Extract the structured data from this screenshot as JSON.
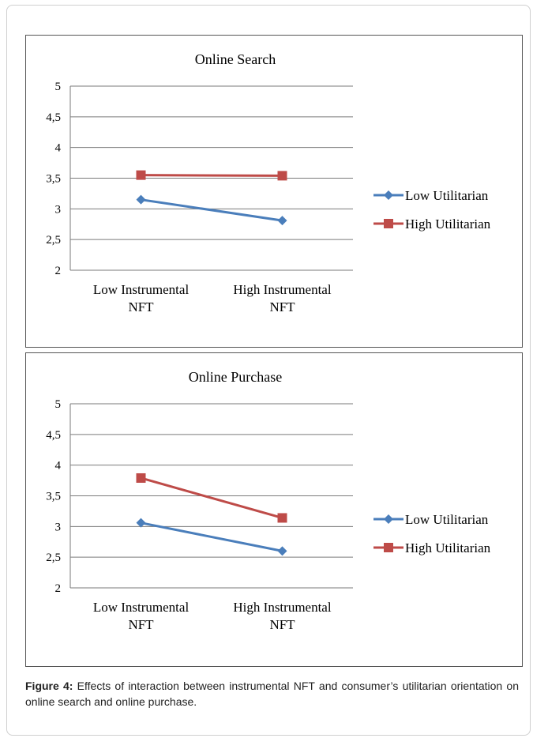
{
  "chart_data": [
    {
      "type": "line",
      "title": "Online Search",
      "categories": [
        "Low Instrumental NFT",
        "High Instrumental NFT"
      ],
      "category_lines": [
        [
          "Low Instrumental",
          "NFT"
        ],
        [
          "High Instrumental",
          "NFT"
        ]
      ],
      "yticks": [
        "2",
        "2,5",
        "3",
        "3,5",
        "4",
        "4,5",
        "5"
      ],
      "ylim": [
        2,
        5
      ],
      "grid": true,
      "legend_position": "right",
      "series": [
        {
          "name": "Low Utilitarian",
          "values": [
            3.15,
            2.81
          ],
          "color": "#4a7ebb",
          "marker": "diamond"
        },
        {
          "name": "High Utilitarian",
          "values": [
            3.55,
            3.54
          ],
          "color": "#be4b48",
          "marker": "square"
        }
      ]
    },
    {
      "type": "line",
      "title": "Online Purchase",
      "categories": [
        "Low Instrumental NFT",
        "High Instrumental NFT"
      ],
      "category_lines": [
        [
          "Low Instrumental",
          "NFT"
        ],
        [
          "High Instrumental",
          "NFT"
        ]
      ],
      "yticks": [
        "2",
        "2,5",
        "3",
        "3,5",
        "4",
        "4,5",
        "5"
      ],
      "ylim": [
        2,
        5
      ],
      "grid": true,
      "legend_position": "right",
      "series": [
        {
          "name": "Low Utilitarian",
          "values": [
            3.06,
            2.6
          ],
          "color": "#4a7ebb",
          "marker": "diamond"
        },
        {
          "name": "High Utilitarian",
          "values": [
            3.79,
            3.14
          ],
          "color": "#be4b48",
          "marker": "square"
        }
      ]
    }
  ],
  "caption": {
    "label": "Figure 4:",
    "text": " Effects of interaction between instrumental NFT and consumer’s utilitarian orientation on online search and online purchase."
  }
}
